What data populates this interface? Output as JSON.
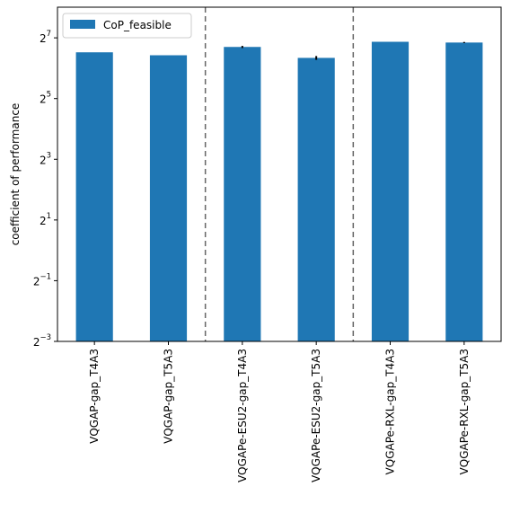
{
  "chart_data": {
    "type": "bar",
    "ylabel": "coefficient of performance",
    "xlabel": "",
    "y_scale": "log2",
    "ylim_exponent": [
      -3,
      8.01
    ],
    "y_ticks": [
      {
        "base": "2",
        "exp": "7",
        "value": 128
      },
      {
        "base": "2",
        "exp": "5",
        "value": 32
      },
      {
        "base": "2",
        "exp": "3",
        "value": 8
      },
      {
        "base": "2",
        "exp": "1",
        "value": 2
      },
      {
        "base": "2",
        "exp": "−1",
        "value": 0.5
      },
      {
        "base": "2",
        "exp": "−3",
        "value": 0.125
      }
    ],
    "categories": [
      "VQGAP-gap_T4A3",
      "VQGAP-gap_T5A3",
      "VQGAPe-ESU2-gap_T4A3",
      "VQGAPe-ESU2-gap_T5A3",
      "VQGAPe-RXL-gap_T4A3",
      "VQGAPe-RXL-gap_T5A3"
    ],
    "series": [
      {
        "name": "CoP_feasible",
        "color": "#1f77b4",
        "values": [
          92,
          86,
          104,
          81,
          117,
          115
        ],
        "errors": [
          0,
          0,
          2.5,
          3.5,
          0,
          1.5
        ]
      }
    ],
    "separators_after_index": [
      1,
      3
    ],
    "legend_position": "upper-left",
    "grid": false
  }
}
